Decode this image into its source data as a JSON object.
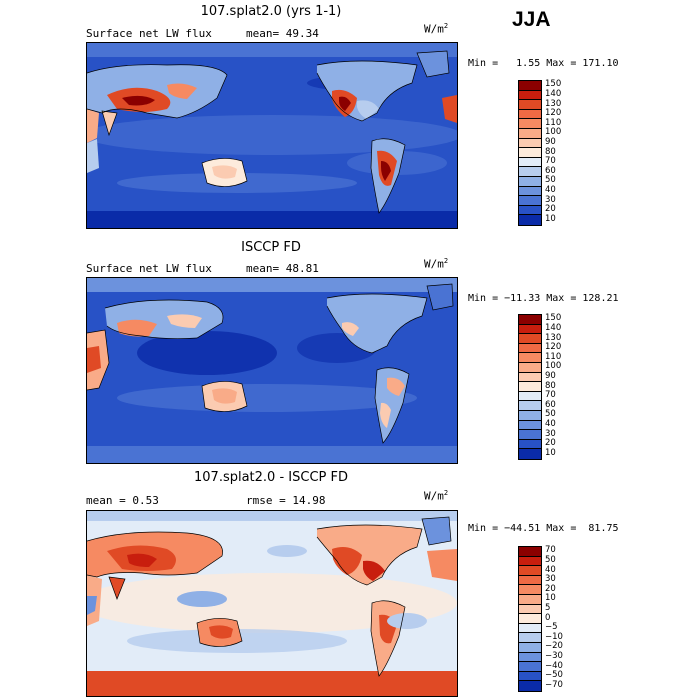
{
  "season": "JJA",
  "units": {
    "base": "W/m",
    "exponent": "2"
  },
  "panels": [
    {
      "id": "model",
      "title": "107.splat2.0 (yrs 1-1)",
      "variable": "Surface net LW flux",
      "stat_text": "mean=  49.34",
      "range_text": "Min =   1.55 Max = 171.10",
      "colorbar": [
        "150",
        "140",
        "130",
        "120",
        "110",
        "100",
        "90",
        "80",
        "70",
        "60",
        "50",
        "40",
        "30",
        "20",
        "10"
      ],
      "colors": [
        "#8b0000",
        "#c81e0e",
        "#e04a25",
        "#ef6a44",
        "#f68a62",
        "#f9ab88",
        "#fbcbb1",
        "#fdebdc",
        "#e2ecf8",
        "#b7cdee",
        "#8fb0e6",
        "#6c92dd",
        "#4a73d3",
        "#2852c6",
        "#0a2ba8"
      ]
    },
    {
      "id": "obs",
      "title": "ISCCP FD",
      "variable": "Surface net LW flux",
      "stat_text": "mean=  48.81",
      "range_text": "Min = −11.33 Max = 128.21",
      "colorbar": [
        "150",
        "140",
        "130",
        "120",
        "110",
        "100",
        "90",
        "80",
        "70",
        "60",
        "50",
        "40",
        "30",
        "20",
        "10"
      ],
      "colors": [
        "#8b0000",
        "#c81e0e",
        "#e04a25",
        "#ef6a44",
        "#f68a62",
        "#f9ab88",
        "#fbcbb1",
        "#fdebdc",
        "#e2ecf8",
        "#b7cdee",
        "#8fb0e6",
        "#6c92dd",
        "#4a73d3",
        "#2852c6",
        "#0a2ba8"
      ]
    },
    {
      "id": "diff",
      "title": "107.splat2.0 - ISCCP FD",
      "variable": "mean =   0.53",
      "stat_text": "rmse =  14.98",
      "range_text": "Min = −44.51 Max =  81.75",
      "colorbar": [
        "70",
        "50",
        "40",
        "30",
        "20",
        "10",
        "5",
        "0",
        "−5",
        "−10",
        "−20",
        "−30",
        "−40",
        "−50",
        "−70"
      ],
      "colors": [
        "#8b0000",
        "#c81e0e",
        "#e04a25",
        "#ef6a44",
        "#f68a62",
        "#f9ab88",
        "#fbcbb1",
        "#fdebdc",
        "#e2ecf8",
        "#b7cdee",
        "#8fb0e6",
        "#6c92dd",
        "#4a73d3",
        "#2852c6",
        "#0a2ba8"
      ]
    }
  ]
}
